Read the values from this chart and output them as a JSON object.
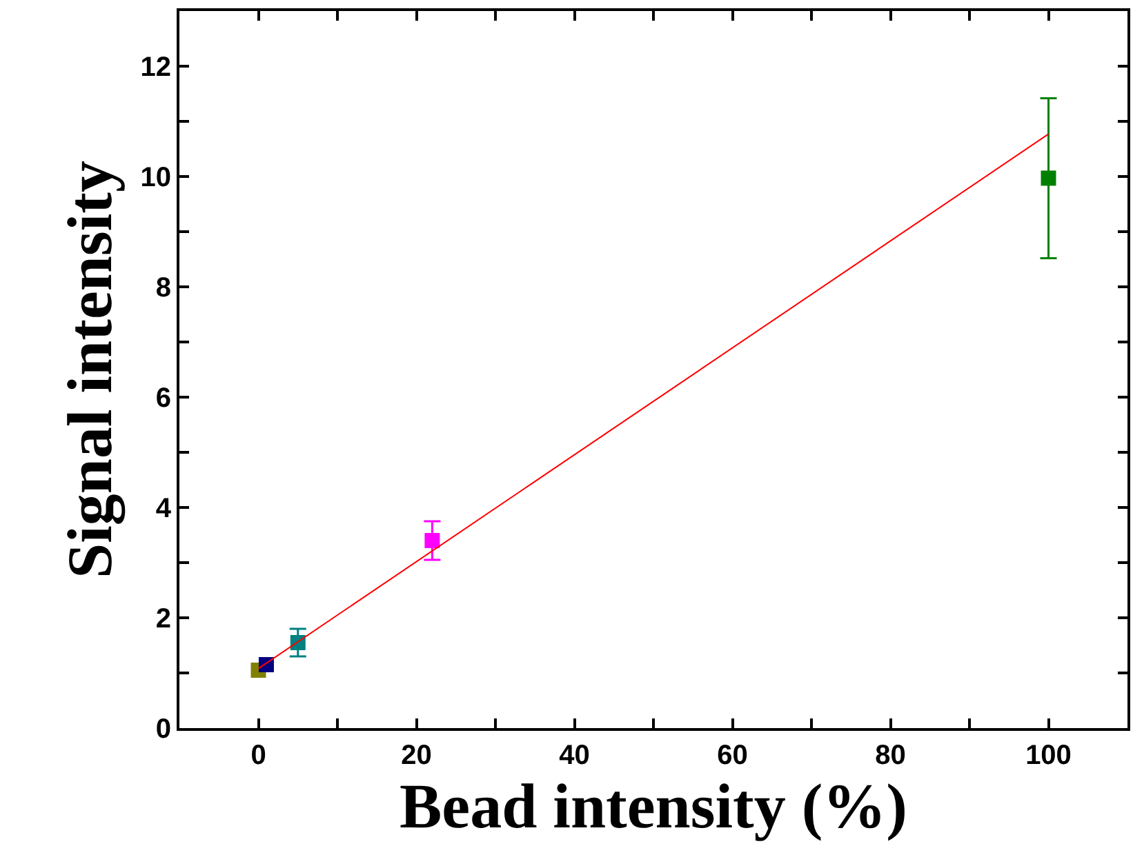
{
  "chart_data": {
    "type": "scatter",
    "xlabel": "Bead intensity (%)",
    "ylabel": "Signal intensity",
    "xlim": [
      -10,
      110
    ],
    "ylim": [
      0,
      13
    ],
    "xticks": [
      0,
      {
        "value": 10,
        "label": null
      },
      20,
      {
        "value": 30,
        "label": null
      },
      40,
      {
        "value": 50,
        "label": null
      },
      60,
      {
        "value": 70,
        "label": null
      },
      80,
      {
        "value": 90,
        "label": null
      },
      100
    ],
    "yticks": [
      0,
      {
        "value": 1,
        "label": null
      },
      2,
      {
        "value": 3,
        "label": null
      },
      4,
      {
        "value": 5,
        "label": null
      },
      6,
      {
        "value": 7,
        "label": null
      },
      8,
      {
        "value": 9,
        "label": null
      },
      10,
      {
        "value": 11,
        "label": null
      },
      12
    ],
    "marker": "square",
    "series": [
      {
        "x": [
          0,
          1,
          5,
          22,
          100
        ],
        "values": [
          1.05,
          1.15,
          1.55,
          3.4,
          9.97
        ],
        "colors": [
          "#808000",
          "#000080",
          "#008080",
          "#ff00ff",
          "#008000"
        ],
        "errors": [
          null,
          null,
          0.25,
          0.35,
          1.45
        ]
      },
      {
        "type": "line",
        "x": [
          0,
          100
        ],
        "values": [
          1.08,
          10.77
        ],
        "color": "#ff0000",
        "marker": "none"
      }
    ]
  }
}
